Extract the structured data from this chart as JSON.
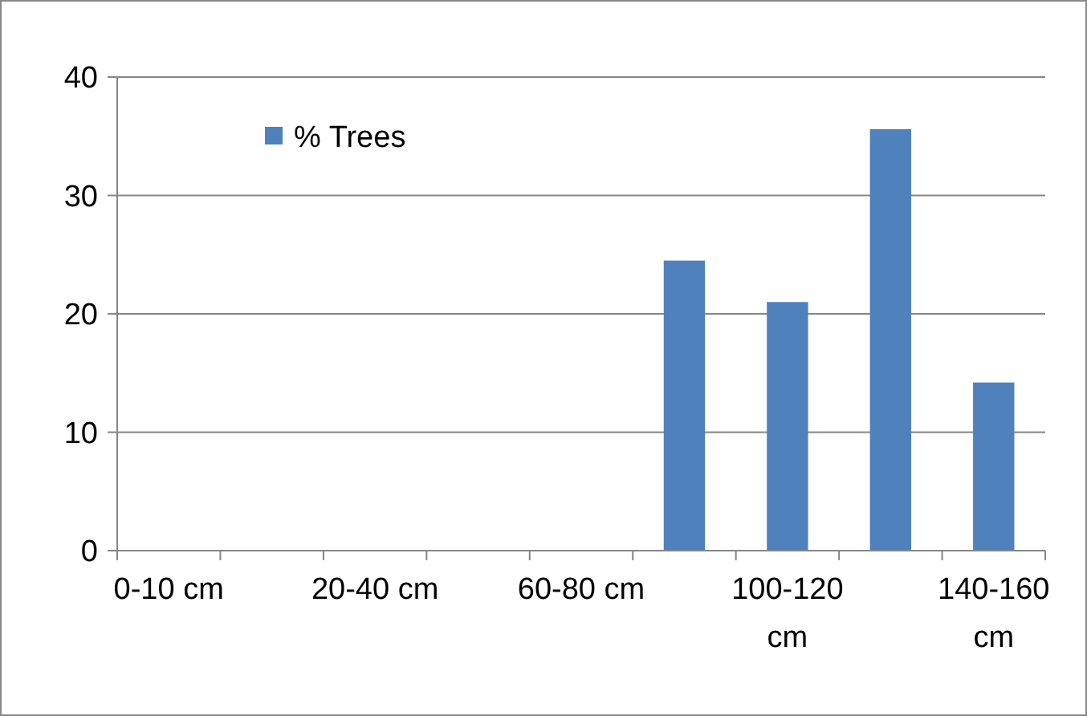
{
  "chart_data": {
    "type": "bar",
    "categories": [
      "0-10 cm",
      null,
      "20-40 cm",
      null,
      "60-80 cm",
      null,
      "100-120 cm",
      null,
      "140-160 cm"
    ],
    "series": [
      {
        "name": "% Trees",
        "color": "#4f81bd",
        "values": [
          0,
          0,
          0,
          0,
          0,
          24.5,
          21,
          35.6,
          14.2
        ]
      }
    ],
    "ylim": [
      0,
      40
    ],
    "yticks": [
      0,
      10,
      20,
      30,
      40
    ],
    "grid": "y",
    "legend": "top left"
  }
}
